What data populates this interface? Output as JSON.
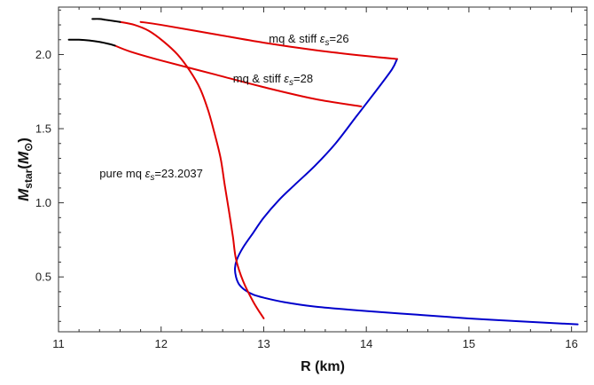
{
  "chart_data": {
    "type": "line",
    "title": "",
    "xlabel": "R (km)",
    "ylabel_main": "M",
    "ylabel_sub1": "star",
    "ylabel_paren_open": "(",
    "ylabel_main2": "M",
    "ylabel_sub2": "⊙",
    "ylabel_paren_close": ")",
    "xlim": [
      11.0,
      16.15
    ],
    "ylim": [
      0.13,
      2.32
    ],
    "xticks": [
      11,
      12,
      13,
      14,
      15,
      16
    ],
    "xtick_labels": [
      "11",
      "12",
      "13",
      "14",
      "15",
      "16"
    ],
    "yticks": [
      0.5,
      1.0,
      1.5,
      2.0
    ],
    "ytick_labels": [
      "0.5",
      "1.0",
      "1.5",
      "2.0"
    ],
    "grid": false,
    "annotations": [
      {
        "pre": "mq & stiff ",
        "sym": "ε",
        "sub": "s",
        "post": "=26",
        "x": 13.05,
        "y": 2.08
      },
      {
        "pre": "mq & stiff ",
        "sym": "ε",
        "sub": "s",
        "post": "=28",
        "x": 12.7,
        "y": 1.81
      },
      {
        "pre": "pure mq ",
        "sym": "ε",
        "sub": "s",
        "post": "=23.2037",
        "x": 11.4,
        "y": 1.17
      }
    ],
    "series": [
      {
        "color": "#0000cc",
        "x": [
          16.06,
          15.5,
          15.0,
          14.5,
          14.0,
          13.5,
          13.2,
          13.0,
          12.9,
          12.82,
          12.76,
          12.73,
          12.72,
          12.74,
          12.8,
          12.9,
          13.0,
          13.15,
          13.3,
          13.5,
          13.7,
          13.9,
          14.1,
          14.25,
          14.3
        ],
        "y": [
          0.18,
          0.2,
          0.22,
          0.245,
          0.27,
          0.3,
          0.33,
          0.36,
          0.38,
          0.41,
          0.45,
          0.5,
          0.56,
          0.62,
          0.7,
          0.8,
          0.9,
          1.02,
          1.12,
          1.25,
          1.4,
          1.58,
          1.76,
          1.9,
          1.97
        ]
      },
      {
        "color": "#e00000",
        "x": [
          13.0,
          12.9,
          12.8,
          12.73,
          12.7,
          12.66,
          12.62,
          12.58,
          12.52,
          12.46,
          12.38,
          12.28,
          12.16,
          12.02,
          11.88,
          11.74,
          11.6
        ],
        "y": [
          0.22,
          0.33,
          0.47,
          0.62,
          0.77,
          0.95,
          1.12,
          1.3,
          1.47,
          1.62,
          1.77,
          1.89,
          2.0,
          2.09,
          2.16,
          2.2,
          2.22
        ]
      },
      {
        "color": "#e00000",
        "x": [
          14.3,
          14.0,
          13.5,
          13.0,
          12.5,
          12.0,
          11.8
        ],
        "y": [
          1.97,
          1.99,
          2.03,
          2.08,
          2.14,
          2.2,
          2.22
        ]
      },
      {
        "color": "#e00000",
        "x": [
          13.95,
          13.5,
          13.0,
          12.5,
          12.0,
          11.7,
          11.55
        ],
        "y": [
          1.65,
          1.7,
          1.78,
          1.87,
          1.96,
          2.02,
          2.06
        ]
      },
      {
        "color": "#000000",
        "x": [
          11.1,
          11.2,
          11.3,
          11.4,
          11.5,
          11.55
        ],
        "y": [
          2.1,
          2.1,
          2.095,
          2.085,
          2.07,
          2.06
        ]
      },
      {
        "color": "#000000",
        "x": [
          11.33,
          11.4,
          11.45,
          11.5,
          11.55,
          11.6
        ],
        "y": [
          2.24,
          2.24,
          2.235,
          2.23,
          2.225,
          2.22
        ]
      }
    ]
  }
}
